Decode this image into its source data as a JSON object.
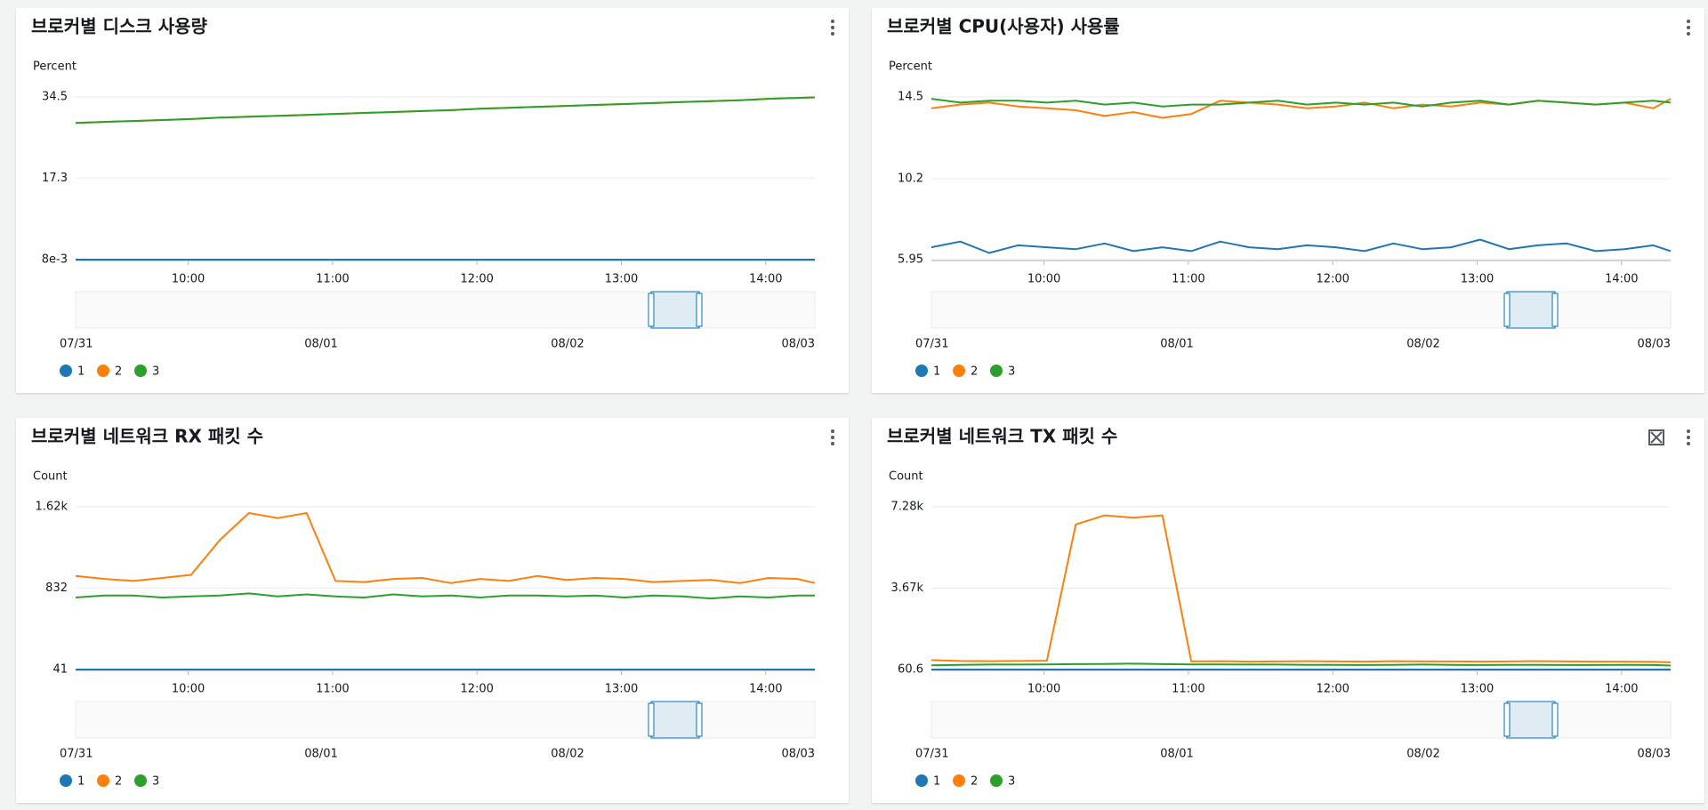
{
  "chart_data": [
    {
      "type": "line",
      "title": "브로커별 디스크 사용량",
      "y_label": "Percent",
      "x": [
        9.22,
        9.42,
        9.62,
        9.82,
        10.02,
        10.22,
        10.42,
        10.62,
        10.82,
        11.02,
        11.22,
        11.42,
        11.62,
        11.82,
        12.02,
        12.22,
        12.42,
        12.62,
        12.82,
        13.02,
        13.22,
        13.42,
        13.62,
        13.82,
        14.02,
        14.22,
        14.34
      ],
      "xlim": [
        9.22,
        14.34
      ],
      "xticks": [
        {
          "value": 10,
          "label": "10:00"
        },
        {
          "value": 11,
          "label": "11:00"
        },
        {
          "value": 12,
          "label": "12:00"
        },
        {
          "value": 13,
          "label": "13:00"
        },
        {
          "value": 14,
          "label": "14:00"
        }
      ],
      "ylim": [
        0.008,
        34.5
      ],
      "yticks": [
        {
          "value": 0.008,
          "label": "8e-3"
        },
        17.3,
        34.5
      ],
      "grid": true,
      "series": [
        {
          "name": "1",
          "color": "#1f77b4",
          "values": [
            0.008,
            0.008,
            0.008,
            0.008,
            0.008,
            0.008,
            0.008,
            0.008,
            0.008,
            0.008,
            0.008,
            0.008,
            0.008,
            0.008,
            0.008,
            0.008,
            0.008,
            0.008,
            0.008,
            0.008,
            0.008,
            0.008,
            0.008,
            0.008,
            0.008,
            0.008,
            0.008
          ]
        },
        {
          "name": "2",
          "color": "#ff7f0e",
          "values": [
            29.0,
            29.2,
            29.4,
            29.6,
            29.8,
            30.1,
            30.3,
            30.5,
            30.7,
            30.9,
            31.1,
            31.3,
            31.5,
            31.7,
            32.0,
            32.2,
            32.4,
            32.6,
            32.8,
            33.0,
            33.2,
            33.4,
            33.6,
            33.8,
            34.1,
            34.3,
            34.4
          ]
        },
        {
          "name": "3",
          "color": "#2ca02c",
          "values": [
            29.0,
            29.2,
            29.4,
            29.6,
            29.8,
            30.1,
            30.3,
            30.5,
            30.7,
            30.9,
            31.1,
            31.3,
            31.5,
            31.7,
            32.0,
            32.2,
            32.4,
            32.6,
            32.8,
            33.0,
            33.2,
            33.4,
            33.6,
            33.8,
            34.1,
            34.3,
            34.4
          ]
        }
      ],
      "overview_labels": [
        "07/31",
        "08/01",
        "08/02",
        "08/03"
      ]
    },
    {
      "type": "line",
      "title": "브로커별 CPU(사용자) 사용률",
      "y_label": "Percent",
      "x": [
        9.22,
        9.42,
        9.62,
        9.82,
        10.02,
        10.22,
        10.42,
        10.62,
        10.82,
        11.02,
        11.22,
        11.42,
        11.62,
        11.82,
        12.02,
        12.22,
        12.42,
        12.62,
        12.82,
        13.02,
        13.22,
        13.42,
        13.62,
        13.82,
        14.02,
        14.22,
        14.34
      ],
      "xlim": [
        9.22,
        14.34
      ],
      "xticks": [
        {
          "value": 10,
          "label": "10:00"
        },
        {
          "value": 11,
          "label": "11:00"
        },
        {
          "value": 12,
          "label": "12:00"
        },
        {
          "value": 13,
          "label": "13:00"
        },
        {
          "value": 14,
          "label": "14:00"
        }
      ],
      "ylim": [
        5.95,
        14.5
      ],
      "yticks": [
        5.95,
        10.2,
        14.5
      ],
      "grid": true,
      "series": [
        {
          "name": "1",
          "color": "#1f77b4",
          "values": [
            6.6,
            6.9,
            6.3,
            6.7,
            6.6,
            6.5,
            6.8,
            6.4,
            6.6,
            6.4,
            6.9,
            6.6,
            6.5,
            6.7,
            6.6,
            6.4,
            6.8,
            6.5,
            6.6,
            7.0,
            6.5,
            6.7,
            6.8,
            6.4,
            6.5,
            6.7,
            6.4
          ]
        },
        {
          "name": "2",
          "color": "#ff7f0e",
          "values": [
            13.9,
            14.1,
            14.2,
            14.0,
            13.9,
            13.8,
            13.5,
            13.7,
            13.4,
            13.6,
            14.3,
            14.2,
            14.1,
            13.9,
            14.0,
            14.2,
            13.9,
            14.1,
            14.0,
            14.2,
            14.1,
            14.3,
            14.2,
            14.1,
            14.2,
            13.9,
            14.4
          ]
        },
        {
          "name": "3",
          "color": "#2ca02c",
          "values": [
            14.4,
            14.2,
            14.3,
            14.3,
            14.2,
            14.3,
            14.1,
            14.2,
            14.0,
            14.1,
            14.1,
            14.2,
            14.3,
            14.1,
            14.2,
            14.1,
            14.2,
            14.0,
            14.2,
            14.3,
            14.1,
            14.3,
            14.2,
            14.1,
            14.2,
            14.3,
            14.2
          ]
        }
      ],
      "overview_labels": [
        "07/31",
        "08/01",
        "08/02",
        "08/03"
      ]
    },
    {
      "type": "line",
      "title": "브로커별 네트워크 RX 패킷 수",
      "y_label": "Count",
      "x": [
        9.22,
        9.42,
        9.62,
        9.82,
        10.02,
        10.22,
        10.42,
        10.62,
        10.82,
        11.02,
        11.22,
        11.42,
        11.62,
        11.82,
        12.02,
        12.22,
        12.42,
        12.62,
        12.82,
        13.02,
        13.22,
        13.42,
        13.62,
        13.82,
        14.02,
        14.22,
        14.34
      ],
      "xlim": [
        9.22,
        14.34
      ],
      "xticks": [
        {
          "value": 10,
          "label": "10:00"
        },
        {
          "value": 11,
          "label": "11:00"
        },
        {
          "value": 12,
          "label": "12:00"
        },
        {
          "value": 13,
          "label": "13:00"
        },
        {
          "value": 14,
          "label": "14:00"
        }
      ],
      "ylim": [
        41,
        1620
      ],
      "yticks": [
        41,
        832,
        {
          "value": 1620,
          "label": "1.62k"
        }
      ],
      "grid": true,
      "series": [
        {
          "name": "1",
          "color": "#1f77b4",
          "values": [
            41,
            41,
            41,
            41,
            41,
            41,
            41,
            41,
            41,
            41,
            41,
            41,
            41,
            41,
            41,
            41,
            41,
            41,
            41,
            41,
            41,
            41,
            41,
            41,
            41,
            41,
            41
          ]
        },
        {
          "name": "2",
          "color": "#ff7f0e",
          "values": [
            950,
            920,
            900,
            930,
            960,
            1300,
            1560,
            1510,
            1560,
            900,
            890,
            920,
            930,
            880,
            920,
            900,
            950,
            910,
            930,
            920,
            890,
            900,
            910,
            880,
            930,
            920,
            880
          ]
        },
        {
          "name": "3",
          "color": "#2ca02c",
          "values": [
            740,
            760,
            760,
            740,
            750,
            760,
            780,
            750,
            770,
            750,
            740,
            770,
            750,
            760,
            740,
            760,
            760,
            750,
            760,
            740,
            760,
            750,
            730,
            750,
            740,
            760,
            760
          ]
        }
      ],
      "overview_labels": [
        "07/31",
        "08/01",
        "08/02",
        "08/03"
      ]
    },
    {
      "type": "line",
      "title": "브로커별 네트워크 TX 패킷 수",
      "y_label": "Count",
      "x": [
        9.22,
        9.42,
        9.62,
        9.82,
        10.02,
        10.22,
        10.42,
        10.62,
        10.82,
        11.02,
        11.22,
        11.42,
        11.62,
        11.82,
        12.02,
        12.22,
        12.42,
        12.62,
        12.82,
        13.02,
        13.22,
        13.42,
        13.62,
        13.82,
        14.02,
        14.22,
        14.34
      ],
      "xlim": [
        9.22,
        14.34
      ],
      "xticks": [
        {
          "value": 10,
          "label": "10:00"
        },
        {
          "value": 11,
          "label": "11:00"
        },
        {
          "value": 12,
          "label": "12:00"
        },
        {
          "value": 13,
          "label": "13:00"
        },
        {
          "value": 14,
          "label": "14:00"
        }
      ],
      "ylim": [
        60.6,
        7280
      ],
      "yticks": [
        60.6,
        {
          "value": 3670,
          "label": "3.67k"
        },
        {
          "value": 7280,
          "label": "7.28k"
        }
      ],
      "grid": true,
      "series": [
        {
          "name": "1",
          "color": "#1f77b4",
          "values": [
            60.6,
            60.6,
            60.6,
            60.6,
            60.6,
            60.6,
            60.6,
            60.6,
            60.6,
            60.6,
            60.6,
            60.6,
            60.6,
            60.6,
            60.6,
            60.6,
            60.6,
            60.6,
            60.6,
            60.6,
            60.6,
            60.6,
            60.6,
            60.6,
            60.6,
            60.6,
            60.6
          ]
        },
        {
          "name": "2",
          "color": "#ff7f0e",
          "values": [
            480,
            440,
            430,
            440,
            450,
            6500,
            6900,
            6800,
            6900,
            420,
            430,
            410,
            420,
            430,
            420,
            410,
            430,
            420,
            420,
            410,
            420,
            430,
            420,
            410,
            410,
            400,
            380
          ]
        },
        {
          "name": "3",
          "color": "#2ca02c",
          "values": [
            250,
            270,
            280,
            280,
            290,
            300,
            310,
            320,
            300,
            290,
            290,
            280,
            280,
            270,
            270,
            260,
            270,
            280,
            270,
            260,
            270,
            270,
            260,
            260,
            270,
            260,
            240
          ]
        }
      ],
      "overview_labels": [
        "07/31",
        "08/01",
        "08/02",
        "08/03"
      ]
    }
  ]
}
